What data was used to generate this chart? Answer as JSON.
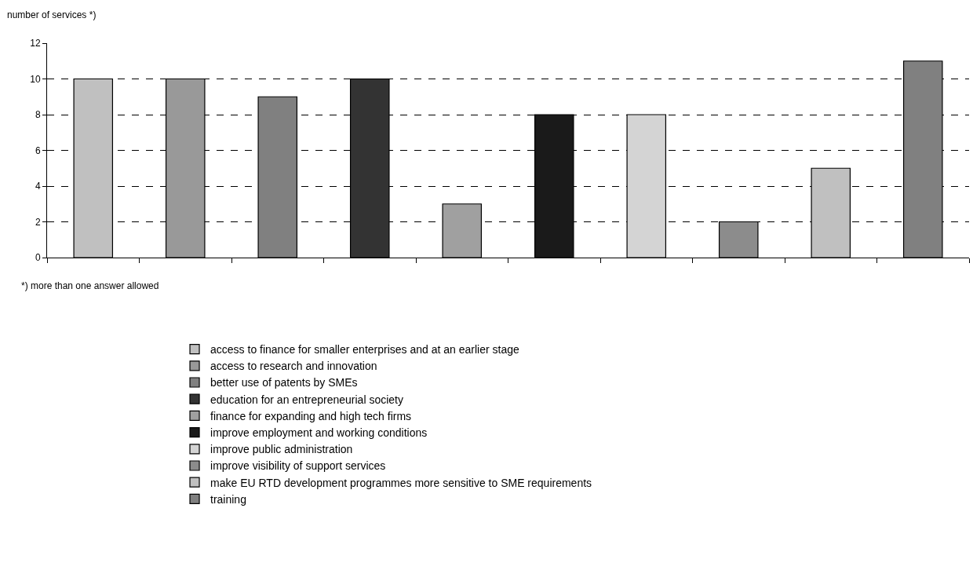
{
  "chart_data": {
    "type": "bar",
    "ylabel": "number of services *)",
    "annotations": [
      "*) more than one answer allowed"
    ],
    "categories": [
      null,
      null,
      null,
      null,
      null,
      null,
      null,
      null,
      null,
      null
    ],
    "series": [
      {
        "name": "access to finance for smaller enterprises and at an earlier stage",
        "color": "#c0c0c0",
        "values": [
          10,
          null,
          null,
          null,
          null,
          null,
          null,
          null,
          null,
          null
        ]
      },
      {
        "name": "access to research and innovation",
        "color": "#999999",
        "values": [
          null,
          10,
          null,
          null,
          null,
          null,
          null,
          null,
          null,
          null
        ]
      },
      {
        "name": "better use of patents by SMEs",
        "color": "#808080",
        "values": [
          null,
          null,
          9,
          null,
          null,
          null,
          null,
          null,
          null,
          null
        ]
      },
      {
        "name": "education for an entrepreneurial society",
        "color": "#333333",
        "values": [
          null,
          null,
          null,
          10,
          null,
          null,
          null,
          null,
          null,
          null
        ]
      },
      {
        "name": "finance for expanding and high tech firms",
        "color": "#a0a0a0",
        "values": [
          null,
          null,
          null,
          null,
          3,
          null,
          null,
          null,
          null,
          null
        ]
      },
      {
        "name": "improve employment and working conditions",
        "color": "#1a1a1a",
        "values": [
          null,
          null,
          null,
          null,
          null,
          8,
          null,
          null,
          null,
          null
        ]
      },
      {
        "name": "improve public administration",
        "color": "#d4d4d4",
        "values": [
          null,
          null,
          null,
          null,
          null,
          null,
          8,
          null,
          null,
          null
        ]
      },
      {
        "name": "improve visibility of support services",
        "color": "#8c8c8c",
        "values": [
          null,
          null,
          null,
          null,
          null,
          null,
          null,
          2,
          null,
          null
        ]
      },
      {
        "name": "make EU RTD development programmes more sensitive to SME requirements",
        "color": "#c0c0c0",
        "values": [
          null,
          null,
          null,
          null,
          null,
          null,
          null,
          null,
          5,
          null
        ]
      },
      {
        "name": "training",
        "color": "#808080",
        "values": [
          null,
          null,
          null,
          null,
          null,
          null,
          null,
          null,
          null,
          11
        ]
      }
    ],
    "ylim": [
      0,
      12
    ],
    "yticks": [
      0,
      2,
      4,
      6,
      8,
      10,
      12
    ],
    "grid": "y",
    "legend": "bottom",
    "tick_labels": "y"
  }
}
